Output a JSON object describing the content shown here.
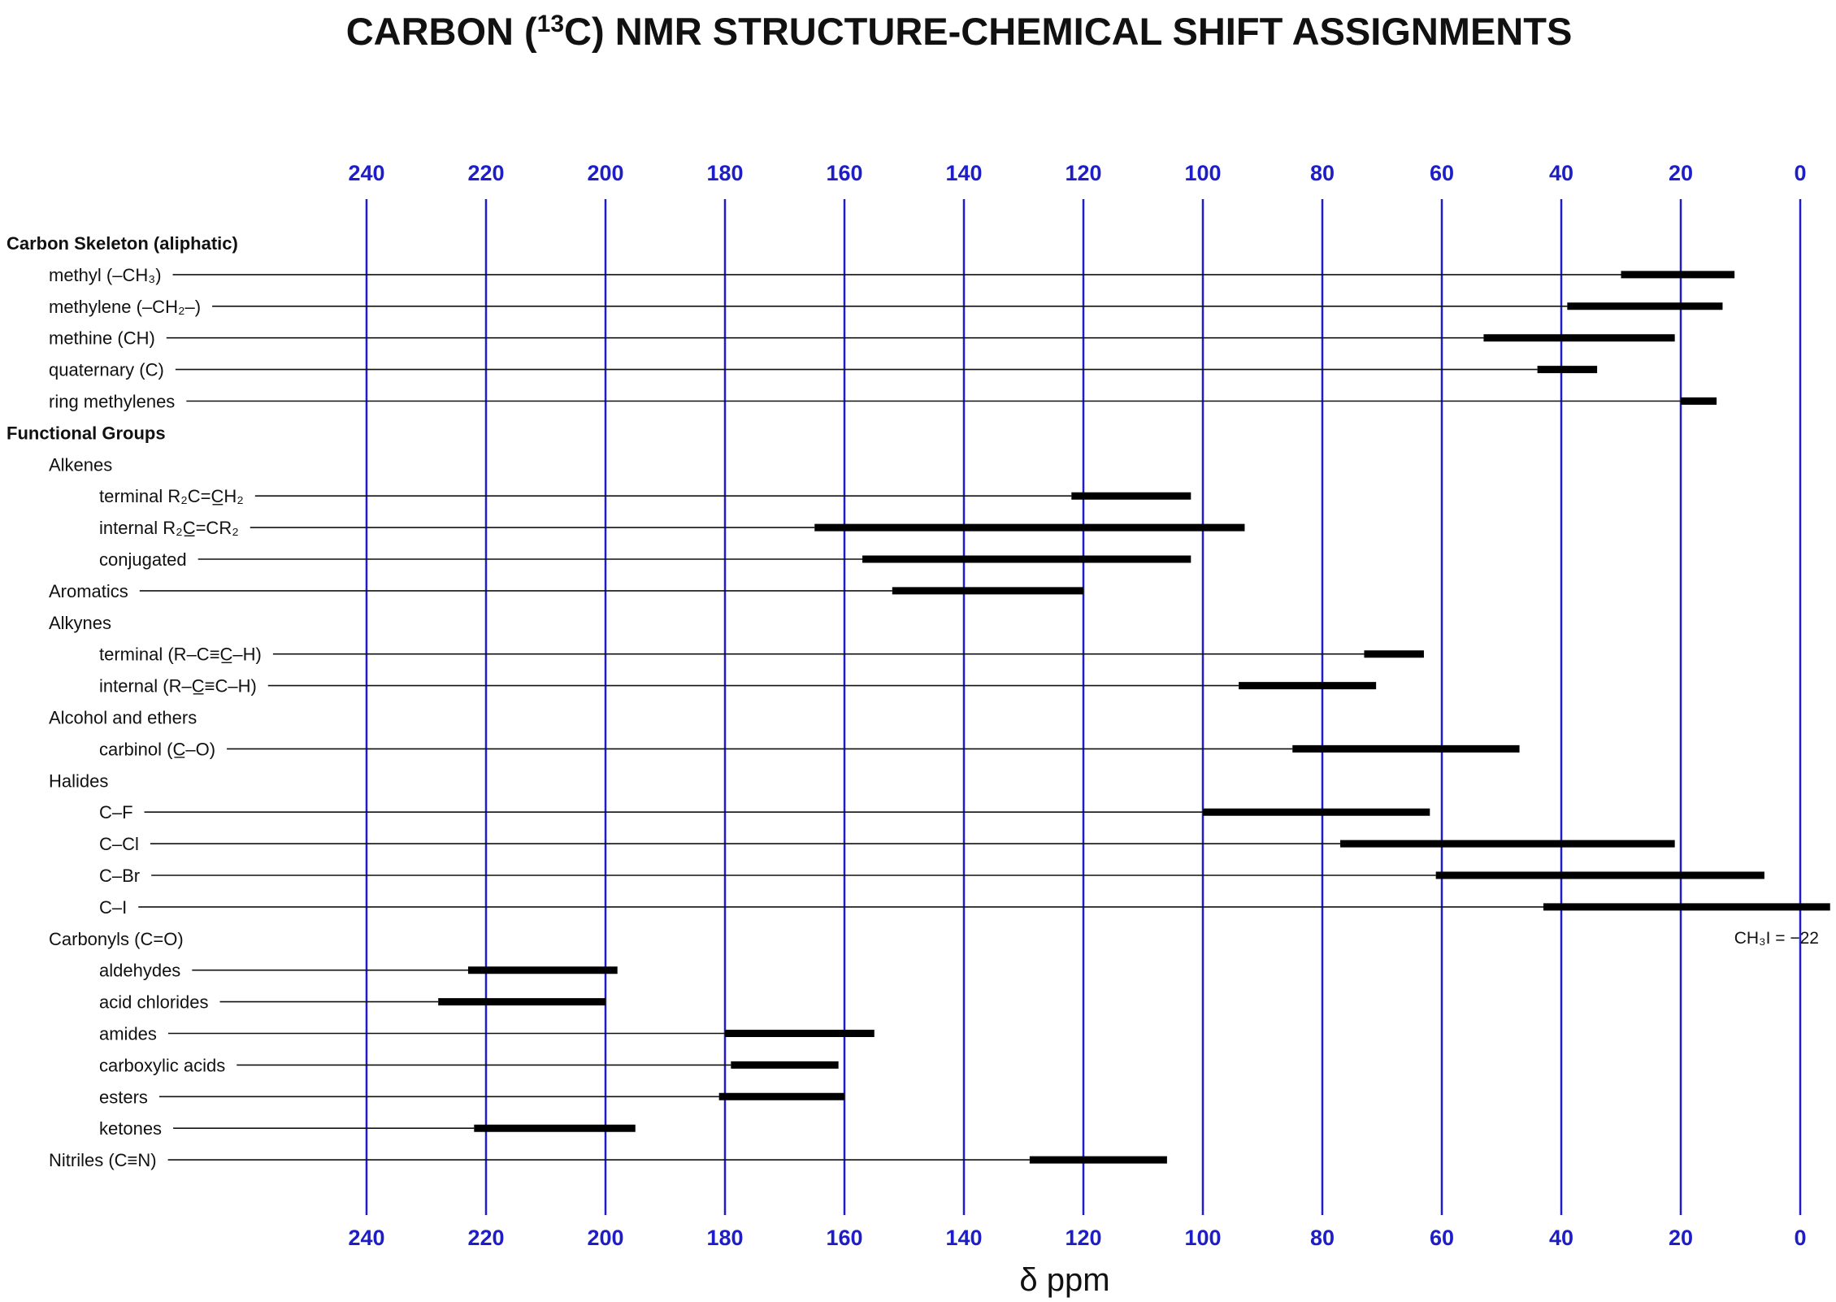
{
  "chart_data": {
    "type": "range-bar",
    "title": "CARBON (13C) NMR STRUCTURE-CHEMICAL SHIFT ASSIGNMENTS",
    "title_parts": [
      "CARBON (",
      "13",
      "C) NMR STRUCTURE-CHEMICAL SHIFT ASSIGNMENTS"
    ],
    "xlabel": "δ ppm",
    "x_ticks": [
      "240",
      "220",
      "200",
      "180",
      "160",
      "140",
      "120",
      "100",
      "80",
      "60",
      "40",
      "20",
      "0"
    ],
    "x_tick_values": [
      240,
      220,
      200,
      180,
      160,
      140,
      120,
      100,
      80,
      60,
      40,
      20,
      0
    ],
    "xlim": [
      0,
      240
    ],
    "x_reversed": true,
    "grid": true,
    "grid_color": "#1e1ec8",
    "bar_color": "#000000",
    "rows": [
      {
        "kind": "header",
        "label": "Carbon Skeleton (aliphatic)",
        "level": 0
      },
      {
        "kind": "item",
        "label": "methyl (–CH₃)",
        "level": 1,
        "range": [
          30,
          11
        ]
      },
      {
        "kind": "item",
        "label": "methylene (–CH₂–)",
        "level": 1,
        "range": [
          39,
          13
        ]
      },
      {
        "kind": "item",
        "label": "methine (CH)",
        "level": 1,
        "range": [
          53,
          21
        ]
      },
      {
        "kind": "item",
        "label": "quaternary (C)",
        "level": 1,
        "range": [
          44,
          34
        ]
      },
      {
        "kind": "item",
        "label": "ring methylenes",
        "level": 1,
        "range": [
          20,
          14
        ]
      },
      {
        "kind": "header",
        "label": "Functional Groups",
        "level": 0
      },
      {
        "kind": "group",
        "label": "Alkenes",
        "level": 1
      },
      {
        "kind": "item",
        "label": "terminal R₂C=C̲H₂",
        "level": 2,
        "range": [
          122,
          102
        ]
      },
      {
        "kind": "item",
        "label": "internal R₂C̲=CR₂",
        "level": 2,
        "range": [
          165,
          93
        ]
      },
      {
        "kind": "item",
        "label": "conjugated",
        "level": 2,
        "range": [
          157,
          102
        ]
      },
      {
        "kind": "item",
        "label": "Aromatics",
        "level": 1,
        "range": [
          152,
          120
        ]
      },
      {
        "kind": "group",
        "label": "Alkynes",
        "level": 1
      },
      {
        "kind": "item",
        "label": "terminal  (R–C≡C̲–H)",
        "level": 2,
        "range": [
          73,
          63
        ]
      },
      {
        "kind": "item",
        "label": "internal (R–C̲≡C–H)",
        "level": 2,
        "range": [
          94,
          71
        ]
      },
      {
        "kind": "group",
        "label": "Alcohol and ethers",
        "level": 1
      },
      {
        "kind": "item",
        "label": "carbinol (C̲–O)",
        "level": 2,
        "range": [
          85,
          47
        ]
      },
      {
        "kind": "group",
        "label": "Halides",
        "level": 1
      },
      {
        "kind": "item",
        "label": "C–F",
        "level": 2,
        "range": [
          100,
          62
        ]
      },
      {
        "kind": "item",
        "label": "C–Cl",
        "level": 2,
        "range": [
          77,
          21
        ]
      },
      {
        "kind": "item",
        "label": "C–Br",
        "level": 2,
        "range": [
          61,
          6
        ]
      },
      {
        "kind": "item",
        "label": "C–I",
        "level": 2,
        "range": [
          43,
          -5
        ],
        "note": "CH₃I = −22"
      },
      {
        "kind": "group",
        "label": "Carbonyls (C=O)",
        "level": 1
      },
      {
        "kind": "item",
        "label": "aldehydes",
        "level": 2,
        "range": [
          223,
          198
        ]
      },
      {
        "kind": "item",
        "label": "acid chlorides",
        "level": 2,
        "range": [
          228,
          200
        ]
      },
      {
        "kind": "item",
        "label": "amides",
        "level": 2,
        "range": [
          180,
          155
        ]
      },
      {
        "kind": "item",
        "label": "carboxylic acids",
        "level": 2,
        "range": [
          179,
          161
        ]
      },
      {
        "kind": "item",
        "label": "esters",
        "level": 2,
        "range": [
          181,
          160
        ]
      },
      {
        "kind": "item",
        "label": "ketones",
        "level": 2,
        "range": [
          222,
          195
        ]
      },
      {
        "kind": "item",
        "label": "Nitriles (C≡N)",
        "level": 1,
        "range": [
          129,
          106
        ]
      }
    ]
  }
}
